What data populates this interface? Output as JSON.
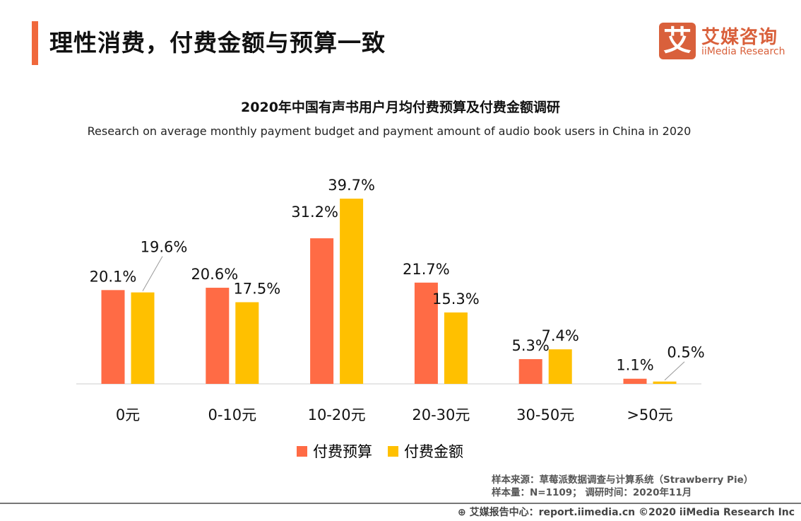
{
  "header": {
    "title": "理性消费，付费金额与预算一致"
  },
  "logo": {
    "icon_char": "艾",
    "name_cn": "艾媒咨询",
    "name_en": "iiMedia Research"
  },
  "chart_data": {
    "type": "bar",
    "title": "2020年中国有声书用户月均付费预算及付费金额调研",
    "subtitle": "Research on average monthly payment budget and payment amount of audio book users in China in 2020",
    "categories": [
      "0元",
      "0-10元",
      "10-20元",
      "20-30元",
      "30-50元",
      ">50元"
    ],
    "series": [
      {
        "name": "付费预算",
        "color": "#FF6B45",
        "values": [
          20.1,
          20.6,
          31.2,
          21.7,
          5.3,
          1.1
        ],
        "labels": [
          "20.1%",
          "20.6%",
          "31.2%",
          "21.7%",
          "5.3%",
          "1.1%"
        ]
      },
      {
        "name": "付费金额",
        "color": "#FFC000",
        "values": [
          19.6,
          17.5,
          39.7,
          15.3,
          7.4,
          0.5
        ],
        "labels": [
          "19.6%",
          "17.5%",
          "39.7%",
          "15.3%",
          "7.4%",
          "0.5%"
        ]
      }
    ],
    "unit": "%",
    "ylim": [
      0,
      40
    ],
    "grid": false,
    "legend": "bottom-center"
  },
  "source": {
    "line1": "样本来源：草莓派数据调查与计算系统（Strawberry Pie）",
    "line2": "样本量：N=1109； 调研时间：2020年11月"
  },
  "footer": {
    "text": "艾媒报告中心：report.iimedia.cn   ©2020  iiMedia Research  Inc"
  }
}
